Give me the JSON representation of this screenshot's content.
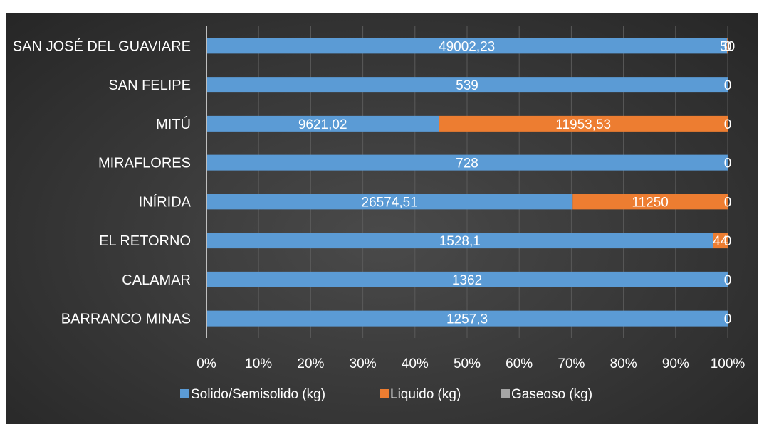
{
  "chart_data": {
    "type": "bar",
    "orientation": "horizontal",
    "stacked": "percent",
    "categories": [
      "SAN JOSÉ DEL GUAVIARE",
      "SAN FELIPE",
      "MITÚ",
      "MIRAFLORES",
      "INÍRIDA",
      "EL RETORNO",
      "CALAMAR",
      "BARRANCO MINAS"
    ],
    "series": [
      {
        "name": "Solido/Semisolido (kg)",
        "color": "#5b9bd5",
        "values": [
          49002.23,
          539,
          9621.02,
          728,
          26574.51,
          1528.1,
          1362,
          1257.3
        ],
        "labels": [
          "49002,23",
          "539",
          "9621,02",
          "728",
          "26574,51",
          "1528,1",
          "1362",
          "1257,3"
        ]
      },
      {
        "name": "Liquido (kg)",
        "color": "#ed7d31",
        "values": [
          50,
          0,
          11953.53,
          0,
          11250,
          44,
          0,
          0
        ],
        "labels": [
          "50",
          "",
          "11953,53",
          "",
          "11250",
          "44",
          "",
          ""
        ]
      },
      {
        "name": "Gaseoso (kg)",
        "color": "#a5a5a5",
        "values": [
          0,
          0,
          0,
          0,
          0,
          0,
          0,
          0
        ],
        "labels": [
          "0",
          "0",
          "0",
          "0",
          "0",
          "0",
          "0",
          "0"
        ]
      }
    ],
    "x_ticks": [
      "0%",
      "10%",
      "20%",
      "30%",
      "40%",
      "50%",
      "60%",
      "70%",
      "80%",
      "90%",
      "100%"
    ],
    "xlim": [
      0,
      100
    ],
    "grid": true,
    "legend_position": "bottom"
  }
}
